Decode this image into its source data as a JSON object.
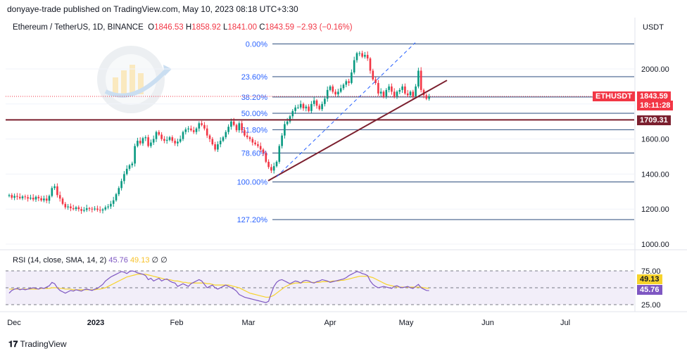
{
  "publisher": "donyaye-trade published on TradingView.com, May 10, 2023 08:18 UTC+3:30",
  "legend": {
    "symbol": "Ethereum / TetherUS, 1D, BINANCE",
    "o_label": "O",
    "o": "1846.53",
    "h_label": "H",
    "h": "1858.92",
    "l_label": "L",
    "l": "1841.00",
    "c_label": "C",
    "c": "1843.59",
    "change": "−2.93 (−0.16%)"
  },
  "currency": "USDT",
  "ticker_tag": "ETHUSDT",
  "price_tag": "1843.59",
  "countdown_tag": "18:11:28",
  "level_tag": "1709.31",
  "rsi_legend": "RSI (14, close, SMA, 14, 2)",
  "rsi_value": "45.76",
  "rsi_sma": "49.13",
  "rsi_extra": "∅ ∅",
  "rsi_tag_value": "45.76",
  "rsi_tag_sma": "49.13",
  "footer": "TradingView",
  "colors": {
    "up": "#089981",
    "down": "#f23645",
    "fib": "#2962ff",
    "trend": "#7b1f2e",
    "rsi": "#7e57c2",
    "rsi_sma": "#f7d32b"
  },
  "chart_data": {
    "type": "candlestick",
    "title": "Ethereum / TetherUS, 1D, BINANCE",
    "ylabel": "USDT",
    "yticks": [
      "2000.00",
      "1800.00",
      "1600.00",
      "1400.00",
      "1200.00",
      "1000.00"
    ],
    "ylim": [
      950,
      2250
    ],
    "xticks": [
      "Dec",
      "2023",
      "Feb",
      "Mar",
      "Apr",
      "May",
      "Jun",
      "Jul"
    ],
    "fib_levels": [
      {
        "label": "0.00%",
        "price": 2143
      },
      {
        "label": "23.60%",
        "price": 1956
      },
      {
        "label": "38.20%",
        "price": 1840
      },
      {
        "label": "50.00%",
        "price": 1747
      },
      {
        "label": "61.80%",
        "price": 1653
      },
      {
        "label": "78.60%",
        "price": 1520
      },
      {
        "label": "100.00%",
        "price": 1355
      },
      {
        "label": "127.20%",
        "price": 1140
      }
    ],
    "horizontal_level": 1709.31,
    "last_price": 1843.59,
    "closes": [
      1280,
      1265,
      1275,
      1270,
      1262,
      1272,
      1268,
      1260,
      1265,
      1255,
      1270,
      1262,
      1250,
      1260,
      1248,
      1275,
      1320,
      1330,
      1280,
      1260,
      1230,
      1210,
      1215,
      1205,
      1200,
      1210,
      1200,
      1190,
      1195,
      1205,
      1202,
      1198,
      1203,
      1196,
      1192,
      1198,
      1210,
      1215,
      1230,
      1250,
      1285,
      1320,
      1360,
      1400,
      1430,
      1450,
      1460,
      1560,
      1590,
      1575,
      1605,
      1610,
      1560,
      1580,
      1600,
      1640,
      1625,
      1600,
      1590,
      1595,
      1610,
      1590,
      1575,
      1585,
      1600,
      1640,
      1655,
      1660,
      1650,
      1640,
      1660,
      1690,
      1680,
      1660,
      1620,
      1600,
      1570,
      1540,
      1570,
      1590,
      1610,
      1640,
      1670,
      1700,
      1680,
      1650,
      1690,
      1650,
      1620,
      1610,
      1600,
      1580,
      1570,
      1560,
      1540,
      1520,
      1470,
      1440,
      1420,
      1445,
      1470,
      1560,
      1620,
      1685,
      1700,
      1730,
      1760,
      1780,
      1780,
      1800,
      1775,
      1785,
      1760,
      1800,
      1820,
      1790,
      1770,
      1800,
      1830,
      1880,
      1900,
      1870,
      1855,
      1870,
      1890,
      1910,
      1930,
      1920,
      1980,
      2050,
      2090,
      2090,
      2070,
      2080,
      2060,
      1990,
      1940,
      1920,
      1860,
      1870,
      1840,
      1880,
      1900,
      1870,
      1840,
      1870,
      1880,
      1900,
      1860,
      1850,
      1870,
      1840,
      1900,
      1990,
      1880,
      1850,
      1830,
      1843.59
    ],
    "rsi": {
      "range": [
        0,
        100
      ],
      "levels": [
        75,
        50,
        25
      ],
      "values": [
        42,
        46,
        48,
        49,
        47,
        48,
        47,
        48,
        49,
        50,
        49,
        48,
        50,
        49,
        51,
        53,
        58,
        56,
        50,
        46,
        44,
        42,
        44,
        46,
        45,
        47,
        46,
        45,
        47,
        48,
        47,
        46,
        48,
        49,
        52,
        55,
        60,
        63,
        66,
        68,
        70,
        72,
        74,
        73,
        71,
        74,
        75,
        74,
        72,
        71,
        70,
        68,
        62,
        64,
        60,
        62,
        64,
        60,
        62,
        63,
        60,
        58,
        57,
        52,
        54,
        56,
        54,
        52,
        56,
        58,
        60,
        62,
        60,
        55,
        50,
        52,
        54,
        50,
        48,
        50,
        52,
        54,
        52,
        50,
        48,
        45,
        40,
        38,
        36,
        35,
        34,
        33,
        32,
        31,
        30,
        29,
        28,
        30,
        42,
        52,
        58,
        61,
        62,
        60,
        58,
        56,
        58,
        60,
        59,
        57,
        60,
        61,
        60,
        58,
        57,
        59,
        60,
        62,
        61,
        60,
        58,
        59,
        60,
        61,
        62,
        63,
        65,
        68,
        70,
        72,
        74,
        73,
        71,
        70,
        68,
        60,
        55,
        52,
        50,
        51,
        52,
        51,
        50,
        49,
        52,
        53,
        51,
        50,
        51,
        52,
        50,
        49,
        52,
        55,
        50,
        48,
        46,
        45.76
      ],
      "sma": [
        48,
        48,
        48,
        48,
        48,
        48,
        48,
        48,
        48,
        48,
        48,
        48,
        49,
        49,
        49,
        49,
        50,
        50,
        50,
        49,
        49,
        48,
        48,
        48,
        47,
        47,
        47,
        47,
        47,
        47,
        47,
        47,
        47,
        48,
        48,
        49,
        50,
        52,
        54,
        56,
        58,
        60,
        62,
        64,
        66,
        67,
        68,
        69,
        70,
        70,
        70,
        70,
        69,
        68,
        67,
        66,
        65,
        64,
        63,
        62,
        62,
        61,
        60,
        60,
        59,
        58,
        58,
        57,
        57,
        57,
        57,
        57,
        57,
        57,
        56,
        56,
        55,
        54,
        54,
        54,
        54,
        54,
        54,
        53,
        52,
        51,
        50,
        48,
        46,
        44,
        42,
        41,
        40,
        39,
        38,
        37,
        36,
        36,
        37,
        39,
        42,
        45,
        48,
        51,
        53,
        55,
        56,
        57,
        57,
        57,
        58,
        58,
        58,
        58,
        58,
        58,
        58,
        59,
        59,
        59,
        59,
        60,
        60,
        60,
        61,
        61,
        62,
        63,
        64,
        65,
        66,
        67,
        67,
        67,
        67,
        66,
        65,
        63,
        61,
        59,
        57,
        55,
        54,
        53,
        52,
        51,
        51,
        51,
        51,
        51,
        51,
        51,
        51,
        51,
        51,
        50,
        49.5,
        49.13
      ]
    }
  }
}
